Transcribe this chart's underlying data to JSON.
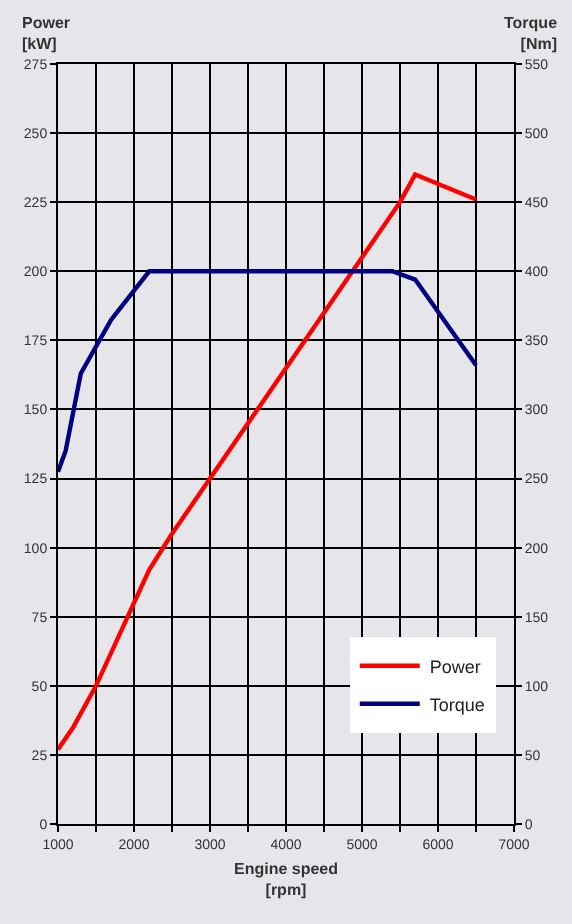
{
  "chart_data": {
    "type": "line",
    "xlabel": "Engine speed\n[rpm]",
    "ylabel": "Power\n[kW]",
    "y2label": "Torque\n[Nm]",
    "xlim": [
      1000,
      7000
    ],
    "xticks": [
      1000,
      {
        "value": 1500,
        "label": null
      },
      2000,
      {
        "value": 2500,
        "label": null
      },
      3000,
      {
        "value": 3500,
        "label": null
      },
      4000,
      {
        "value": 4500,
        "label": null
      },
      5000,
      {
        "value": 5500,
        "label": null
      },
      6000,
      {
        "value": 6500,
        "label": null
      },
      7000
    ],
    "ylim": [
      0,
      275
    ],
    "yticks": [
      0,
      25,
      50,
      75,
      100,
      125,
      150,
      175,
      200,
      225,
      250,
      275
    ],
    "y2lim": [
      0,
      550
    ],
    "y2ticks": [
      0,
      50,
      100,
      150,
      200,
      250,
      300,
      350,
      400,
      450,
      500,
      550
    ],
    "grid": true,
    "legend": "bottom right",
    "line_style": "solid",
    "marker": "none",
    "series": [
      {
        "name": "Power",
        "color": "#ff0000",
        "x": [
          1000,
          1200,
          1500,
          2000,
          2200,
          2500,
          3000,
          5500,
          5700,
          6500
        ],
        "values": [
          27,
          35,
          50,
          80,
          92,
          105,
          125,
          225,
          235,
          226
        ]
      },
      {
        "name": "Torque",
        "color": "#000080",
        "axis": "y2",
        "x": [
          1000,
          1100,
          1300,
          1700,
          2200,
          5400,
          5700,
          6500
        ],
        "values": [
          255,
          270,
          326,
          365,
          400,
          400,
          394,
          332
        ]
      }
    ]
  }
}
